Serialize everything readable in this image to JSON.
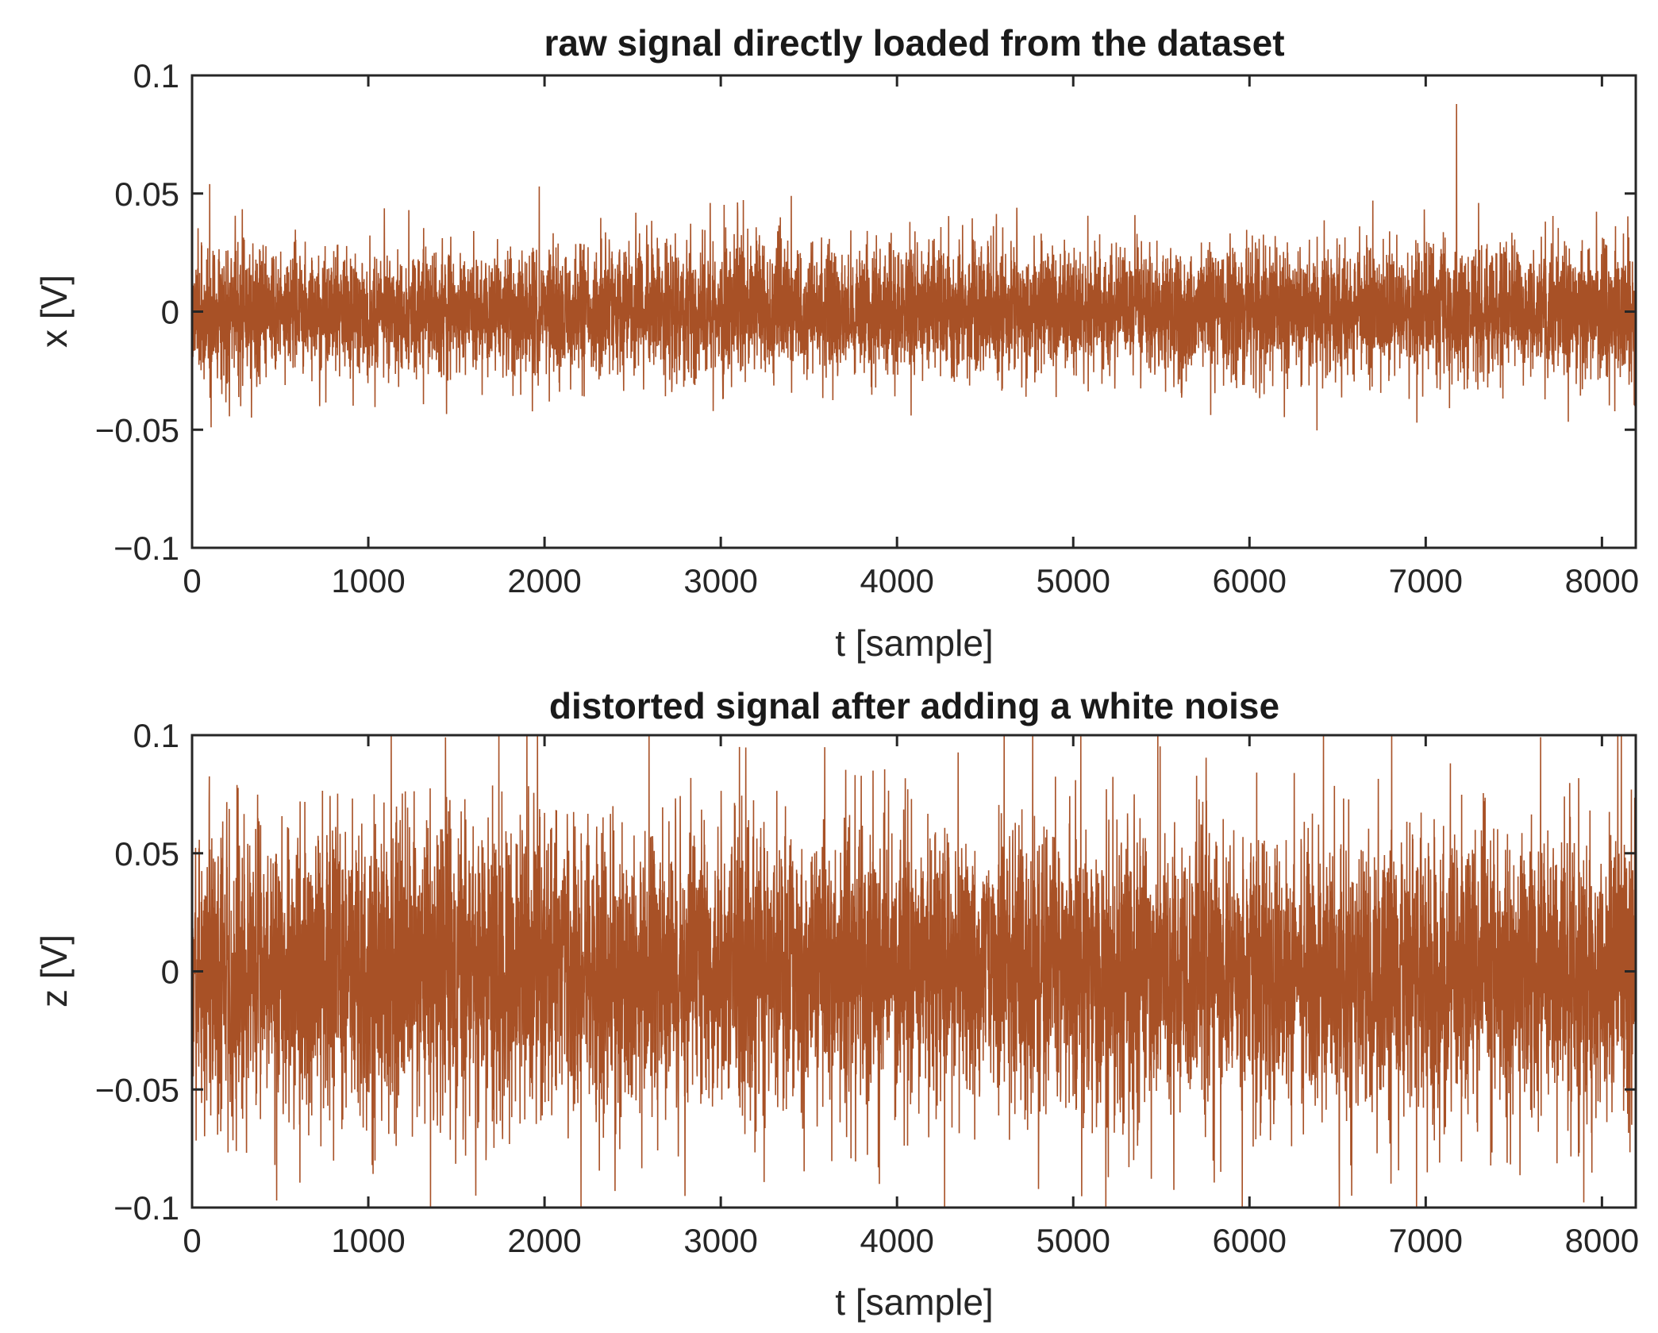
{
  "chart_data": [
    {
      "type": "line",
      "title": "raw signal directly loaded from the dataset",
      "xlabel": "t [sample]",
      "ylabel": "x [V]",
      "xlim": [
        0,
        8192
      ],
      "ylim": [
        -0.1,
        0.1
      ],
      "xticks": [
        0,
        1000,
        2000,
        3000,
        4000,
        5000,
        6000,
        7000,
        8000
      ],
      "xtick_labels": [
        "0",
        "1000",
        "2000",
        "3000",
        "4000",
        "5000",
        "6000",
        "7000",
        "8000"
      ],
      "yticks": [
        0.1,
        0.05,
        0,
        -0.05,
        -0.1
      ],
      "ytick_labels": [
        "0.1",
        "0.05",
        "0",
        "−0.05",
        "−0.1"
      ],
      "grid": false,
      "line_color": "#993300",
      "series": [
        {
          "noise_std": 0.012,
          "envelope": [
            [
              0,
              0.017
            ],
            [
              500,
              0.016
            ],
            [
              1000,
              0.016
            ],
            [
              1500,
              0.015
            ],
            [
              2000,
              0.016
            ],
            [
              2500,
              0.015
            ],
            [
              3000,
              0.018
            ],
            [
              3500,
              0.015
            ],
            [
              4000,
              0.015
            ],
            [
              4500,
              0.017
            ],
            [
              5000,
              0.015
            ],
            [
              5500,
              0.016
            ],
            [
              6000,
              0.017
            ],
            [
              6500,
              0.015
            ],
            [
              7000,
              0.016
            ],
            [
              7500,
              0.017
            ],
            [
              8192,
              0.017
            ]
          ],
          "peaks": [
            [
              100,
              0.054
            ],
            [
              108,
              -0.049
            ],
            [
              1230,
              0.043
            ],
            [
              1970,
              0.053
            ],
            [
              2940,
              0.046
            ],
            [
              3400,
              0.049
            ],
            [
              4080,
              -0.044
            ],
            [
              4680,
              0.044
            ],
            [
              6700,
              0.047
            ],
            [
              6950,
              -0.047
            ],
            [
              7300,
              0.046
            ]
          ]
        }
      ]
    },
    {
      "type": "line",
      "title": "distorted signal after adding a white noise",
      "xlabel": "t [sample]",
      "ylabel": "z [V]",
      "xlim": [
        0,
        8192
      ],
      "ylim": [
        -0.1,
        0.1
      ],
      "xticks": [
        0,
        1000,
        2000,
        3000,
        4000,
        5000,
        6000,
        7000,
        8000
      ],
      "xtick_labels": [
        "0",
        "1000",
        "2000",
        "3000",
        "4000",
        "5000",
        "6000",
        "7000",
        "8000"
      ],
      "yticks": [
        0.1,
        0.05,
        0,
        -0.05,
        -0.1
      ],
      "ytick_labels": [
        "0.1",
        "0.05",
        "0",
        "−0.05",
        "−0.1"
      ],
      "grid": false,
      "line_color": "#993300",
      "series": [
        {
          "noise_std": 0.028,
          "envelope": [
            [
              0,
              0.037
            ],
            [
              500,
              0.036
            ],
            [
              1000,
              0.035
            ],
            [
              1500,
              0.037
            ],
            [
              2000,
              0.036
            ],
            [
              2500,
              0.034
            ],
            [
              3000,
              0.036
            ],
            [
              3500,
              0.035
            ],
            [
              4000,
              0.034
            ],
            [
              4500,
              0.036
            ],
            [
              5000,
              0.035
            ],
            [
              5500,
              0.036
            ],
            [
              6000,
              0.034
            ],
            [
              6500,
              0.033
            ],
            [
              7000,
              0.035
            ],
            [
              7500,
              0.034
            ],
            [
              8192,
              0.036
            ]
          ],
          "peaks": [
            [
              1900,
              0.1
            ],
            [
              1960,
              0.1
            ],
            [
              2400,
              -0.093
            ],
            [
              4270,
              -0.1
            ],
            [
              5480,
              0.1
            ],
            [
              6420,
              0.1
            ],
            [
              6580,
              -0.095
            ],
            [
              480,
              -0.097
            ],
            [
              3900,
              -0.09
            ]
          ]
        }
      ]
    }
  ]
}
